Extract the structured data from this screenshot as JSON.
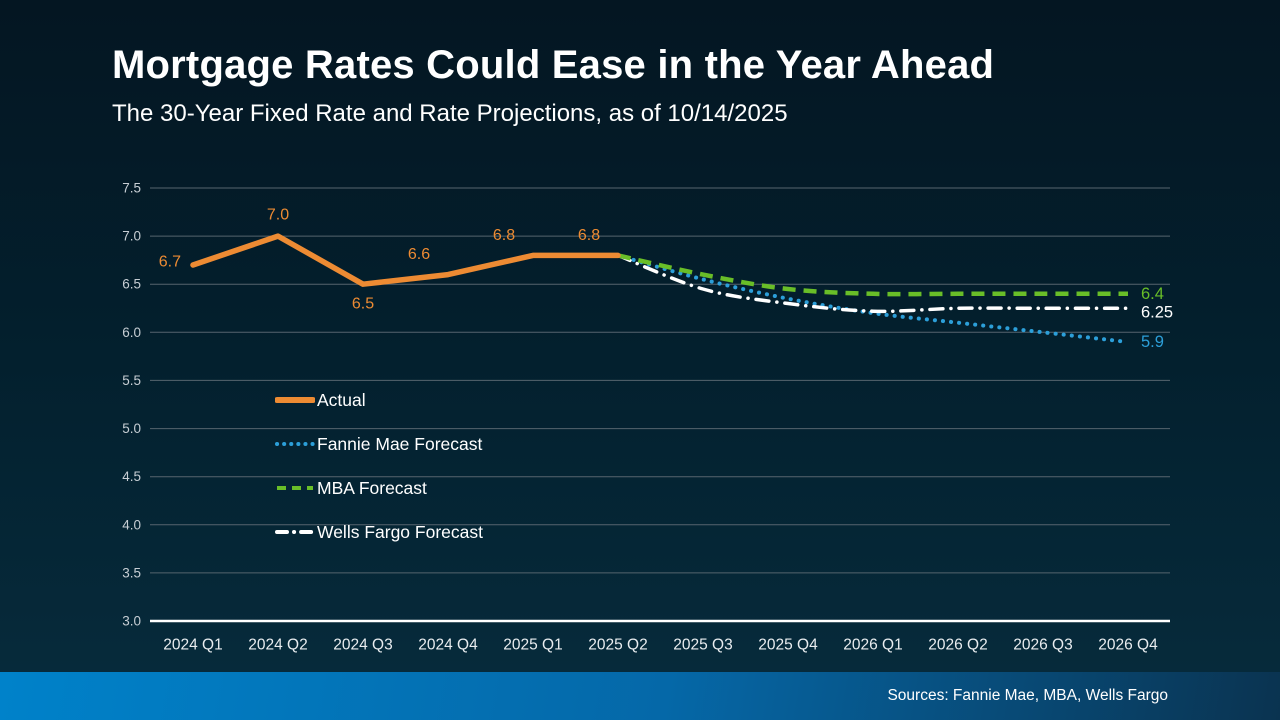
{
  "header": {
    "title": "Mortgage Rates Could Ease in the Year Ahead",
    "subtitle": "The 30-Year Fixed Rate and Rate Projections, as of 10/14/2025"
  },
  "footer": {
    "sources": "Sources: Fannie Mae, MBA, Wells Fargo"
  },
  "colors": {
    "background_top": "#041622",
    "background_bottom": "#072c3d",
    "accent_orange": "#ED8B33",
    "accent_blue": "#2C9FD9",
    "accent_green": "#69BE28",
    "series_white": "#FFFFFF",
    "gridline": "#56646E",
    "axis_line": "#FFFFFF",
    "y_tick_text": "#C7CED4",
    "x_tick_text": "#E9EDF0",
    "footer_left": "#0082CA",
    "footer_right": "#0A3350"
  },
  "chart_data": {
    "type": "line",
    "title": "Mortgage Rates Could Ease in the Year Ahead",
    "subtitle": "The 30-Year Fixed Rate and Rate Projections, as of 10/14/2025",
    "categories": [
      "2024 Q1",
      "2024 Q2",
      "2024 Q3",
      "2024 Q4",
      "2025 Q1",
      "2025 Q2",
      "2025 Q3",
      "2025 Q4",
      "2026 Q1",
      "2026 Q2",
      "2026 Q3",
      "2026 Q4"
    ],
    "y_ticks": [
      7.5,
      7.0,
      6.5,
      6.0,
      5.5,
      5.0,
      4.5,
      4.0,
      3.5,
      3.0
    ],
    "ylim": [
      3.0,
      7.5
    ],
    "xlabel": "",
    "ylabel": "",
    "grid": true,
    "legend_position": "inside-left-middle",
    "series": [
      {
        "name": "Actual",
        "color": "#ED8B33",
        "style": "solid",
        "width": 5.5,
        "start_index": 0,
        "smooth": false,
        "values": [
          6.7,
          7.0,
          6.5,
          6.6,
          6.8,
          6.8
        ],
        "point_labels": [
          {
            "i": 0,
            "text": "6.7",
            "pos": "left"
          },
          {
            "i": 1,
            "text": "7.0",
            "pos": "above"
          },
          {
            "i": 2,
            "text": "6.5",
            "pos": "below"
          },
          {
            "i": 3,
            "text": "6.6",
            "pos": "above-left"
          },
          {
            "i": 4,
            "text": "6.8",
            "pos": "above-left"
          },
          {
            "i": 5,
            "text": "6.8",
            "pos": "above-left"
          }
        ]
      },
      {
        "name": "Fannie Mae Forecast",
        "color": "#2C9FD9",
        "style": "dotted",
        "width": 4,
        "start_index": 5,
        "smooth": true,
        "values": [
          6.8,
          6.55,
          6.35,
          6.2,
          6.1,
          6.0,
          5.9
        ],
        "end_label": "5.9",
        "end_label_dy": 0
      },
      {
        "name": "MBA Forecast",
        "color": "#69BE28",
        "style": "dashed",
        "width": 4.5,
        "start_index": 5,
        "smooth": true,
        "values": [
          6.8,
          6.6,
          6.45,
          6.4,
          6.4,
          6.4,
          6.4
        ],
        "end_label": "6.4",
        "end_label_dy": 0
      },
      {
        "name": "Wells Fargo Forecast",
        "color": "#FFFFFF",
        "style": "dash-dot",
        "width": 3.5,
        "start_index": 5,
        "smooth": true,
        "values": [
          6.8,
          6.45,
          6.3,
          6.22,
          6.25,
          6.25,
          6.25
        ],
        "end_label": "6.25",
        "end_label_dy": 4
      }
    ]
  }
}
